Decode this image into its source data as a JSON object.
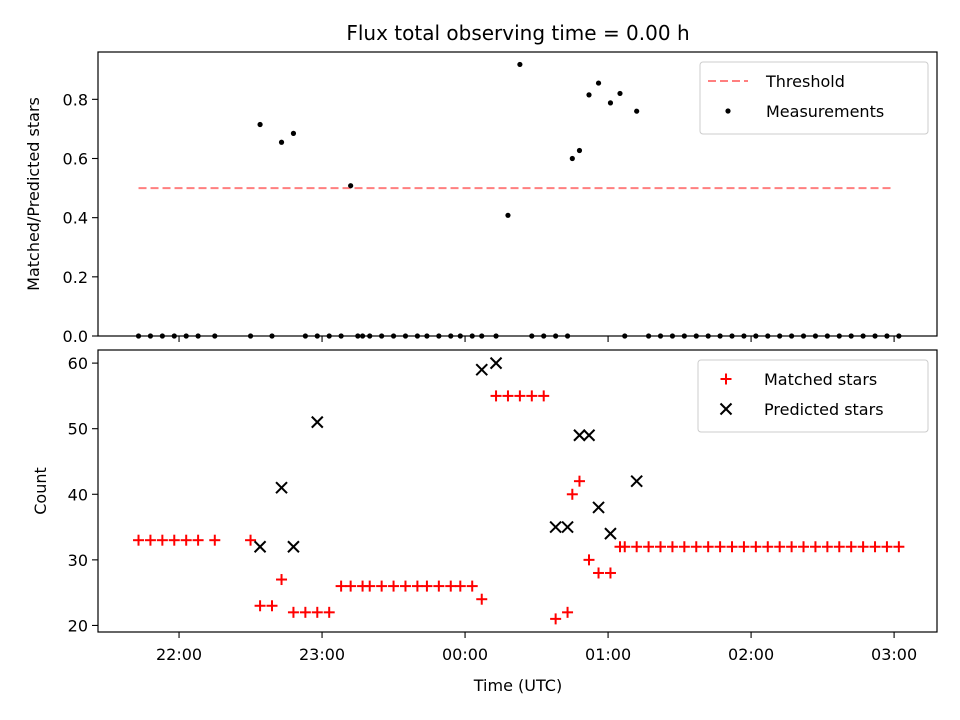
{
  "figure": {
    "title": "Flux total observing time = 0.00 h",
    "xlabel": "Time (UTC)",
    "x_tick_labels": [
      "22:00",
      "23:00",
      "00:00",
      "01:00",
      "02:00",
      "03:00"
    ]
  },
  "chart_data": [
    {
      "type": "scatter",
      "ylabel": "Matched/Predicted stars",
      "xlim": [
        "21:26",
        "03:18"
      ],
      "ylim": [
        0,
        0.96
      ],
      "y_ticks": [
        0.0,
        0.2,
        0.4,
        0.6,
        0.8
      ],
      "y_tick_labels": [
        "0.0",
        "0.2",
        "0.4",
        "0.6",
        "0.8"
      ],
      "legend_position": "top-right",
      "threshold": {
        "name": "Threshold",
        "value": 0.5,
        "x_start": "21:43",
        "x_end": "03:00",
        "color": "#ff7f7f"
      },
      "series": [
        {
          "name": "Measurements",
          "color": "#000000",
          "x": [
            "21:43",
            "21:48",
            "21:53",
            "21:58",
            "22:03",
            "22:08",
            "22:15",
            "22:30",
            "22:34",
            "22:39",
            "22:43",
            "22:48",
            "22:53",
            "22:58",
            "23:03",
            "23:08",
            "23:12",
            "23:15",
            "23:17",
            "23:20",
            "23:25",
            "23:30",
            "23:35",
            "23:40",
            "23:44",
            "23:49",
            "23:54",
            "23:58",
            "00:03",
            "00:07",
            "00:13",
            "00:18",
            "00:23",
            "00:28",
            "00:33",
            "00:38",
            "00:43",
            "00:45",
            "00:48",
            "00:52",
            "00:56",
            "01:01",
            "01:05",
            "01:07",
            "01:12",
            "01:17",
            "01:22",
            "01:27",
            "01:32",
            "01:37",
            "01:42",
            "01:47",
            "01:52",
            "01:57",
            "02:02",
            "02:07",
            "02:12",
            "02:17",
            "02:22",
            "02:27",
            "02:32",
            "02:37",
            "02:42",
            "02:47",
            "02:52",
            "02:57",
            "03:02"
          ],
          "y": [
            0,
            0,
            0,
            0,
            0,
            0,
            0,
            0,
            0.715,
            0,
            0.655,
            0.685,
            0,
            0,
            0,
            0,
            0.508,
            0,
            0,
            0,
            0,
            0,
            0,
            0,
            0,
            0,
            0,
            0,
            0,
            0,
            0,
            0.408,
            0.918,
            0,
            0,
            0,
            0,
            0.6,
            0.627,
            0.815,
            0.855,
            0.788,
            0.82,
            0,
            0.76,
            0,
            0,
            0,
            0,
            0,
            0,
            0,
            0,
            0,
            0,
            0,
            0,
            0,
            0,
            0,
            0,
            0,
            0,
            0,
            0,
            0,
            0
          ]
        }
      ]
    },
    {
      "type": "scatter",
      "ylabel": "Count",
      "xlim": [
        "21:26",
        "03:18"
      ],
      "ylim": [
        19,
        62
      ],
      "y_ticks": [
        20,
        30,
        40,
        50,
        60
      ],
      "y_tick_labels": [
        "20",
        "30",
        "40",
        "50",
        "60"
      ],
      "legend_position": "top-right",
      "series": [
        {
          "name": "Matched stars",
          "marker": "plus",
          "color": "#ff0000",
          "x": [
            "21:43",
            "21:48",
            "21:53",
            "21:58",
            "22:03",
            "22:08",
            "22:15",
            "22:30",
            "22:34",
            "22:39",
            "22:43",
            "22:48",
            "22:53",
            "22:58",
            "23:03",
            "23:08",
            "23:12",
            "23:17",
            "23:20",
            "23:25",
            "23:30",
            "23:35",
            "23:40",
            "23:44",
            "23:49",
            "23:54",
            "23:58",
            "00:03",
            "00:07",
            "00:13",
            "00:18",
            "00:23",
            "00:28",
            "00:33",
            "00:38",
            "00:43",
            "00:45",
            "00:48",
            "00:52",
            "00:56",
            "01:01",
            "01:05",
            "01:07",
            "01:12",
            "01:17",
            "01:22",
            "01:27",
            "01:32",
            "01:37",
            "01:42",
            "01:47",
            "01:52",
            "01:57",
            "02:02",
            "02:07",
            "02:12",
            "02:17",
            "02:22",
            "02:27",
            "02:32",
            "02:37",
            "02:42",
            "02:47",
            "02:52",
            "02:57",
            "03:02"
          ],
          "y": [
            33,
            33,
            33,
            33,
            33,
            33,
            33,
            33,
            23,
            23,
            27,
            22,
            22,
            22,
            22,
            26,
            26,
            26,
            26,
            26,
            26,
            26,
            26,
            26,
            26,
            26,
            26,
            26,
            24,
            55,
            55,
            55,
            55,
            55,
            21,
            22,
            40,
            42,
            30,
            28,
            28,
            32,
            32,
            32,
            32,
            32,
            32,
            32,
            32,
            32,
            32,
            32,
            32,
            32,
            32,
            32,
            32,
            32,
            32,
            32,
            32,
            32,
            32,
            32,
            32,
            32
          ]
        },
        {
          "name": "Predicted stars",
          "marker": "x",
          "color": "#000000",
          "x": [
            "22:34",
            "22:43",
            "22:48",
            "22:58",
            "00:07",
            "00:13",
            "00:38",
            "00:43",
            "00:48",
            "00:52",
            "00:56",
            "01:01",
            "01:12"
          ],
          "y": [
            32,
            41,
            32,
            51,
            59,
            60,
            35,
            35,
            49,
            49,
            38,
            34,
            42
          ]
        }
      ]
    }
  ]
}
